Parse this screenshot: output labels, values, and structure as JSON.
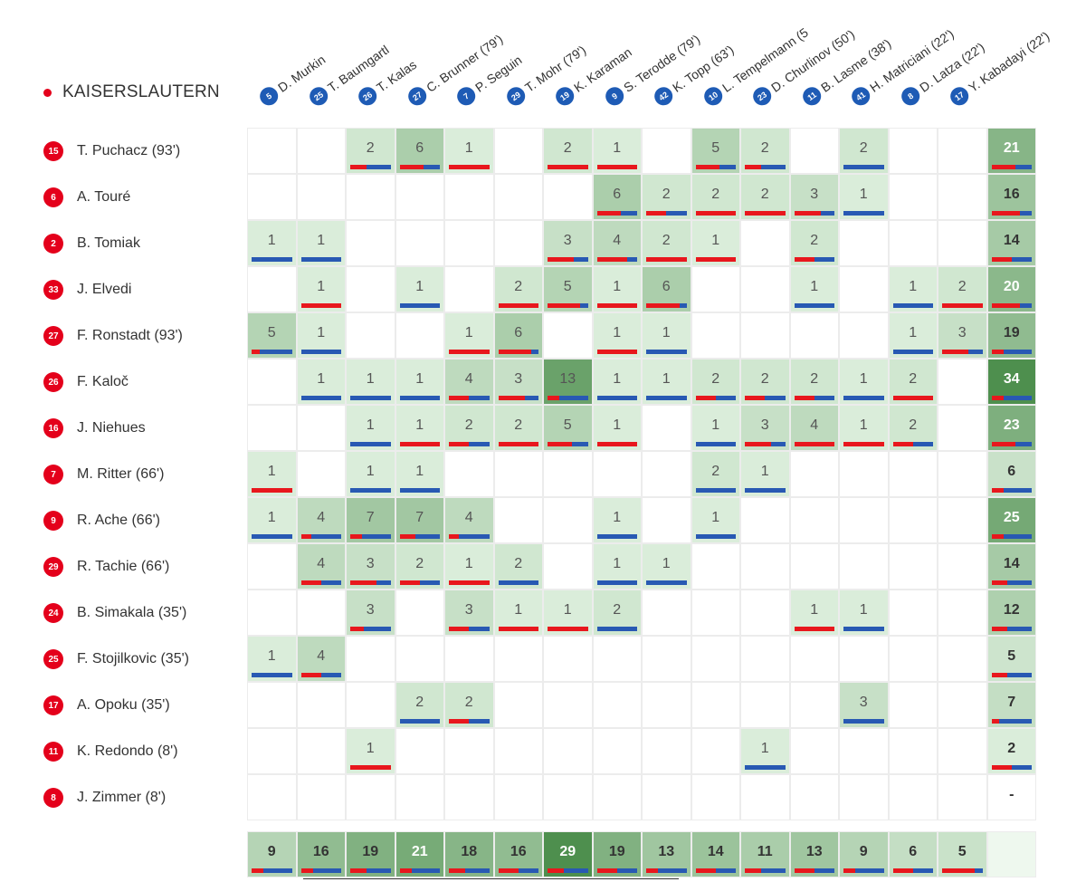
{
  "team": {
    "name": "KAISERSLAUTERN"
  },
  "colors": {
    "home_badge": "#e4001b",
    "away_badge": "#1e5bb5",
    "bar_red": "#e8171d",
    "bar_blue": "#2859b3",
    "cell_shade_light": "#e3f3e3",
    "cell_shade_dark": "#4e8f4e"
  },
  "columns": [
    {
      "num": "5",
      "name": "D. Murkin"
    },
    {
      "num": "25",
      "name": "T. Baumgartl"
    },
    {
      "num": "26",
      "name": "T. Kalas"
    },
    {
      "num": "27",
      "name": "C. Brunner (79')"
    },
    {
      "num": "7",
      "name": "P. Seguin"
    },
    {
      "num": "29",
      "name": "T. Mohr (79')"
    },
    {
      "num": "19",
      "name": "K. Karaman"
    },
    {
      "num": "9",
      "name": "S. Terodde (79')"
    },
    {
      "num": "42",
      "name": "K. Topp (63')"
    },
    {
      "num": "10",
      "name": "L. Tempelmann (5"
    },
    {
      "num": "23",
      "name": "D. Churlinov (50')"
    },
    {
      "num": "11",
      "name": "B. Lasme (38')"
    },
    {
      "num": "41",
      "name": "H. Matriciani (22')"
    },
    {
      "num": "8",
      "name": "D. Latza (22')"
    },
    {
      "num": "17",
      "name": "Y. Kabadayi (22')"
    }
  ],
  "rows": [
    {
      "num": "15",
      "name": "T. Puchacz (93')",
      "total": "21",
      "total_red": 0.6,
      "cells": [
        null,
        null,
        {
          "v": "2",
          "r": 0.4
        },
        {
          "v": "6",
          "r": 0.6
        },
        {
          "v": "1",
          "r": 1
        },
        null,
        {
          "v": "2",
          "r": 1
        },
        {
          "v": "1",
          "r": 1
        },
        null,
        {
          "v": "5",
          "r": 0.6
        },
        {
          "v": "2",
          "r": 0.4
        },
        null,
        {
          "v": "2",
          "r": 0
        },
        null,
        null
      ]
    },
    {
      "num": "6",
      "name": "A. Touré",
      "total": "16",
      "total_red": 0.7,
      "cells": [
        null,
        null,
        null,
        null,
        null,
        null,
        null,
        {
          "v": "6",
          "r": 0.6
        },
        {
          "v": "2",
          "r": 0.5
        },
        {
          "v": "2",
          "r": 1
        },
        {
          "v": "2",
          "r": 1
        },
        {
          "v": "3",
          "r": 0.66
        },
        {
          "v": "1",
          "r": 0
        },
        null,
        null
      ]
    },
    {
      "num": "2",
      "name": "B. Tomiak",
      "total": "14",
      "total_red": 0.5,
      "cells": [
        {
          "v": "1",
          "r": 0
        },
        {
          "v": "1",
          "r": 0
        },
        null,
        null,
        null,
        null,
        {
          "v": "3",
          "r": 0.66
        },
        {
          "v": "4",
          "r": 0.75
        },
        {
          "v": "2",
          "r": 1
        },
        {
          "v": "1",
          "r": 1
        },
        null,
        {
          "v": "2",
          "r": 0.5
        },
        null,
        null,
        null
      ]
    },
    {
      "num": "33",
      "name": "J. Elvedi",
      "total": "20",
      "total_red": 0.7,
      "cells": [
        null,
        {
          "v": "1",
          "r": 1
        },
        null,
        {
          "v": "1",
          "r": 0
        },
        null,
        {
          "v": "2",
          "r": 1
        },
        {
          "v": "5",
          "r": 0.8
        },
        {
          "v": "1",
          "r": 1
        },
        {
          "v": "6",
          "r": 0.83
        },
        null,
        null,
        {
          "v": "1",
          "r": 0
        },
        null,
        {
          "v": "1",
          "r": 0
        },
        {
          "v": "2",
          "r": 1
        }
      ]
    },
    {
      "num": "27",
      "name": "F. Ronstadt (93')",
      "total": "19",
      "total_red": 0.3,
      "cells": [
        {
          "v": "5",
          "r": 0.2
        },
        {
          "v": "1",
          "r": 0
        },
        null,
        null,
        {
          "v": "1",
          "r": 1
        },
        {
          "v": "6",
          "r": 0.83
        },
        null,
        {
          "v": "1",
          "r": 1
        },
        {
          "v": "1",
          "r": 0
        },
        null,
        null,
        null,
        null,
        {
          "v": "1",
          "r": 0
        },
        {
          "v": "3",
          "r": 0.66
        }
      ]
    },
    {
      "num": "26",
      "name": "F. Kaloč",
      "total": "34",
      "total_red": 0.3,
      "cells": [
        null,
        {
          "v": "1",
          "r": 0
        },
        {
          "v": "1",
          "r": 0
        },
        {
          "v": "1",
          "r": 0
        },
        {
          "v": "4",
          "r": 0.5
        },
        {
          "v": "3",
          "r": 0.66
        },
        {
          "v": "13",
          "r": 0.3
        },
        {
          "v": "1",
          "r": 0
        },
        {
          "v": "1",
          "r": 0
        },
        {
          "v": "2",
          "r": 0.5
        },
        {
          "v": "2",
          "r": 0.5
        },
        {
          "v": "2",
          "r": 0.5
        },
        {
          "v": "1",
          "r": 0
        },
        {
          "v": "2",
          "r": 1
        },
        null
      ]
    },
    {
      "num": "16",
      "name": "J. Niehues",
      "total": "23",
      "total_red": 0.6,
      "cells": [
        null,
        null,
        {
          "v": "1",
          "r": 0
        },
        {
          "v": "1",
          "r": 1
        },
        {
          "v": "2",
          "r": 0.5
        },
        {
          "v": "2",
          "r": 1
        },
        {
          "v": "5",
          "r": 0.6
        },
        {
          "v": "1",
          "r": 1
        },
        null,
        {
          "v": "1",
          "r": 0
        },
        {
          "v": "3",
          "r": 0.66
        },
        {
          "v": "4",
          "r": 1
        },
        {
          "v": "1",
          "r": 1
        },
        {
          "v": "2",
          "r": 0.5
        },
        null
      ]
    },
    {
      "num": "7",
      "name": "M. Ritter (66')",
      "total": "6",
      "total_red": 0.3,
      "cells": [
        {
          "v": "1",
          "r": 1
        },
        null,
        {
          "v": "1",
          "r": 0
        },
        {
          "v": "1",
          "r": 0
        },
        null,
        null,
        null,
        null,
        null,
        {
          "v": "2",
          "r": 0
        },
        {
          "v": "1",
          "r": 0
        },
        null,
        null,
        null,
        null
      ]
    },
    {
      "num": "9",
      "name": "R. Ache (66')",
      "total": "25",
      "total_red": 0.3,
      "cells": [
        {
          "v": "1",
          "r": 0
        },
        {
          "v": "4",
          "r": 0.25
        },
        {
          "v": "7",
          "r": 0.3
        },
        {
          "v": "7",
          "r": 0.4
        },
        {
          "v": "4",
          "r": 0.25
        },
        null,
        null,
        {
          "v": "1",
          "r": 0
        },
        null,
        {
          "v": "1",
          "r": 0
        },
        null,
        null,
        null,
        null,
        null
      ]
    },
    {
      "num": "29",
      "name": "R. Tachie (66')",
      "total": "14",
      "total_red": 0.4,
      "cells": [
        null,
        {
          "v": "4",
          "r": 0.5
        },
        {
          "v": "3",
          "r": 0.66
        },
        {
          "v": "2",
          "r": 0.5
        },
        {
          "v": "1",
          "r": 1
        },
        {
          "v": "2",
          "r": 0
        },
        null,
        {
          "v": "1",
          "r": 0
        },
        {
          "v": "1",
          "r": 0
        },
        null,
        null,
        null,
        null,
        null,
        null
      ]
    },
    {
      "num": "24",
      "name": "B. Simakala (35')",
      "total": "12",
      "total_red": 0.4,
      "cells": [
        null,
        null,
        {
          "v": "3",
          "r": 0.33
        },
        null,
        {
          "v": "3",
          "r": 0.5
        },
        {
          "v": "1",
          "r": 1
        },
        {
          "v": "1",
          "r": 1
        },
        {
          "v": "2",
          "r": 0
        },
        null,
        null,
        null,
        {
          "v": "1",
          "r": 1
        },
        {
          "v": "1",
          "r": 0
        },
        null,
        null
      ]
    },
    {
      "num": "25",
      "name": "F. Stojilkovic (35')",
      "total": "5",
      "total_red": 0.4,
      "cells": [
        {
          "v": "1",
          "r": 0
        },
        {
          "v": "4",
          "r": 0.5
        },
        null,
        null,
        null,
        null,
        null,
        null,
        null,
        null,
        null,
        null,
        null,
        null,
        null
      ]
    },
    {
      "num": "17",
      "name": "A. Opoku (35')",
      "total": "7",
      "total_red": 0.2,
      "cells": [
        null,
        null,
        null,
        {
          "v": "2",
          "r": 0
        },
        {
          "v": "2",
          "r": 0.5
        },
        null,
        null,
        null,
        null,
        null,
        null,
        null,
        {
          "v": "3",
          "r": 0
        },
        null,
        null
      ]
    },
    {
      "num": "11",
      "name": "K. Redondo (8')",
      "total": "2",
      "total_red": 0.5,
      "cells": [
        null,
        null,
        {
          "v": "1",
          "r": 1
        },
        null,
        null,
        null,
        null,
        null,
        null,
        null,
        {
          "v": "1",
          "r": 0
        },
        null,
        null,
        null,
        null
      ]
    },
    {
      "num": "8",
      "name": "J. Zimmer (8')",
      "total": "-",
      "total_red": null,
      "cells": [
        null,
        null,
        null,
        null,
        null,
        null,
        null,
        null,
        null,
        null,
        null,
        null,
        null,
        null,
        null
      ]
    }
  ],
  "column_totals": [
    {
      "v": "9",
      "r": 0.3
    },
    {
      "v": "16",
      "r": 0.3
    },
    {
      "v": "19",
      "r": 0.4
    },
    {
      "v": "21",
      "r": 0.3
    },
    {
      "v": "18",
      "r": 0.4
    },
    {
      "v": "16",
      "r": 0.5
    },
    {
      "v": "29",
      "r": 0.4
    },
    {
      "v": "19",
      "r": 0.5
    },
    {
      "v": "13",
      "r": 0.3
    },
    {
      "v": "14",
      "r": 0.5
    },
    {
      "v": "11",
      "r": 0.4
    },
    {
      "v": "13",
      "r": 0.5
    },
    {
      "v": "9",
      "r": 0.3
    },
    {
      "v": "6",
      "r": 0.5
    },
    {
      "v": "5",
      "r": 0.8
    }
  ]
}
